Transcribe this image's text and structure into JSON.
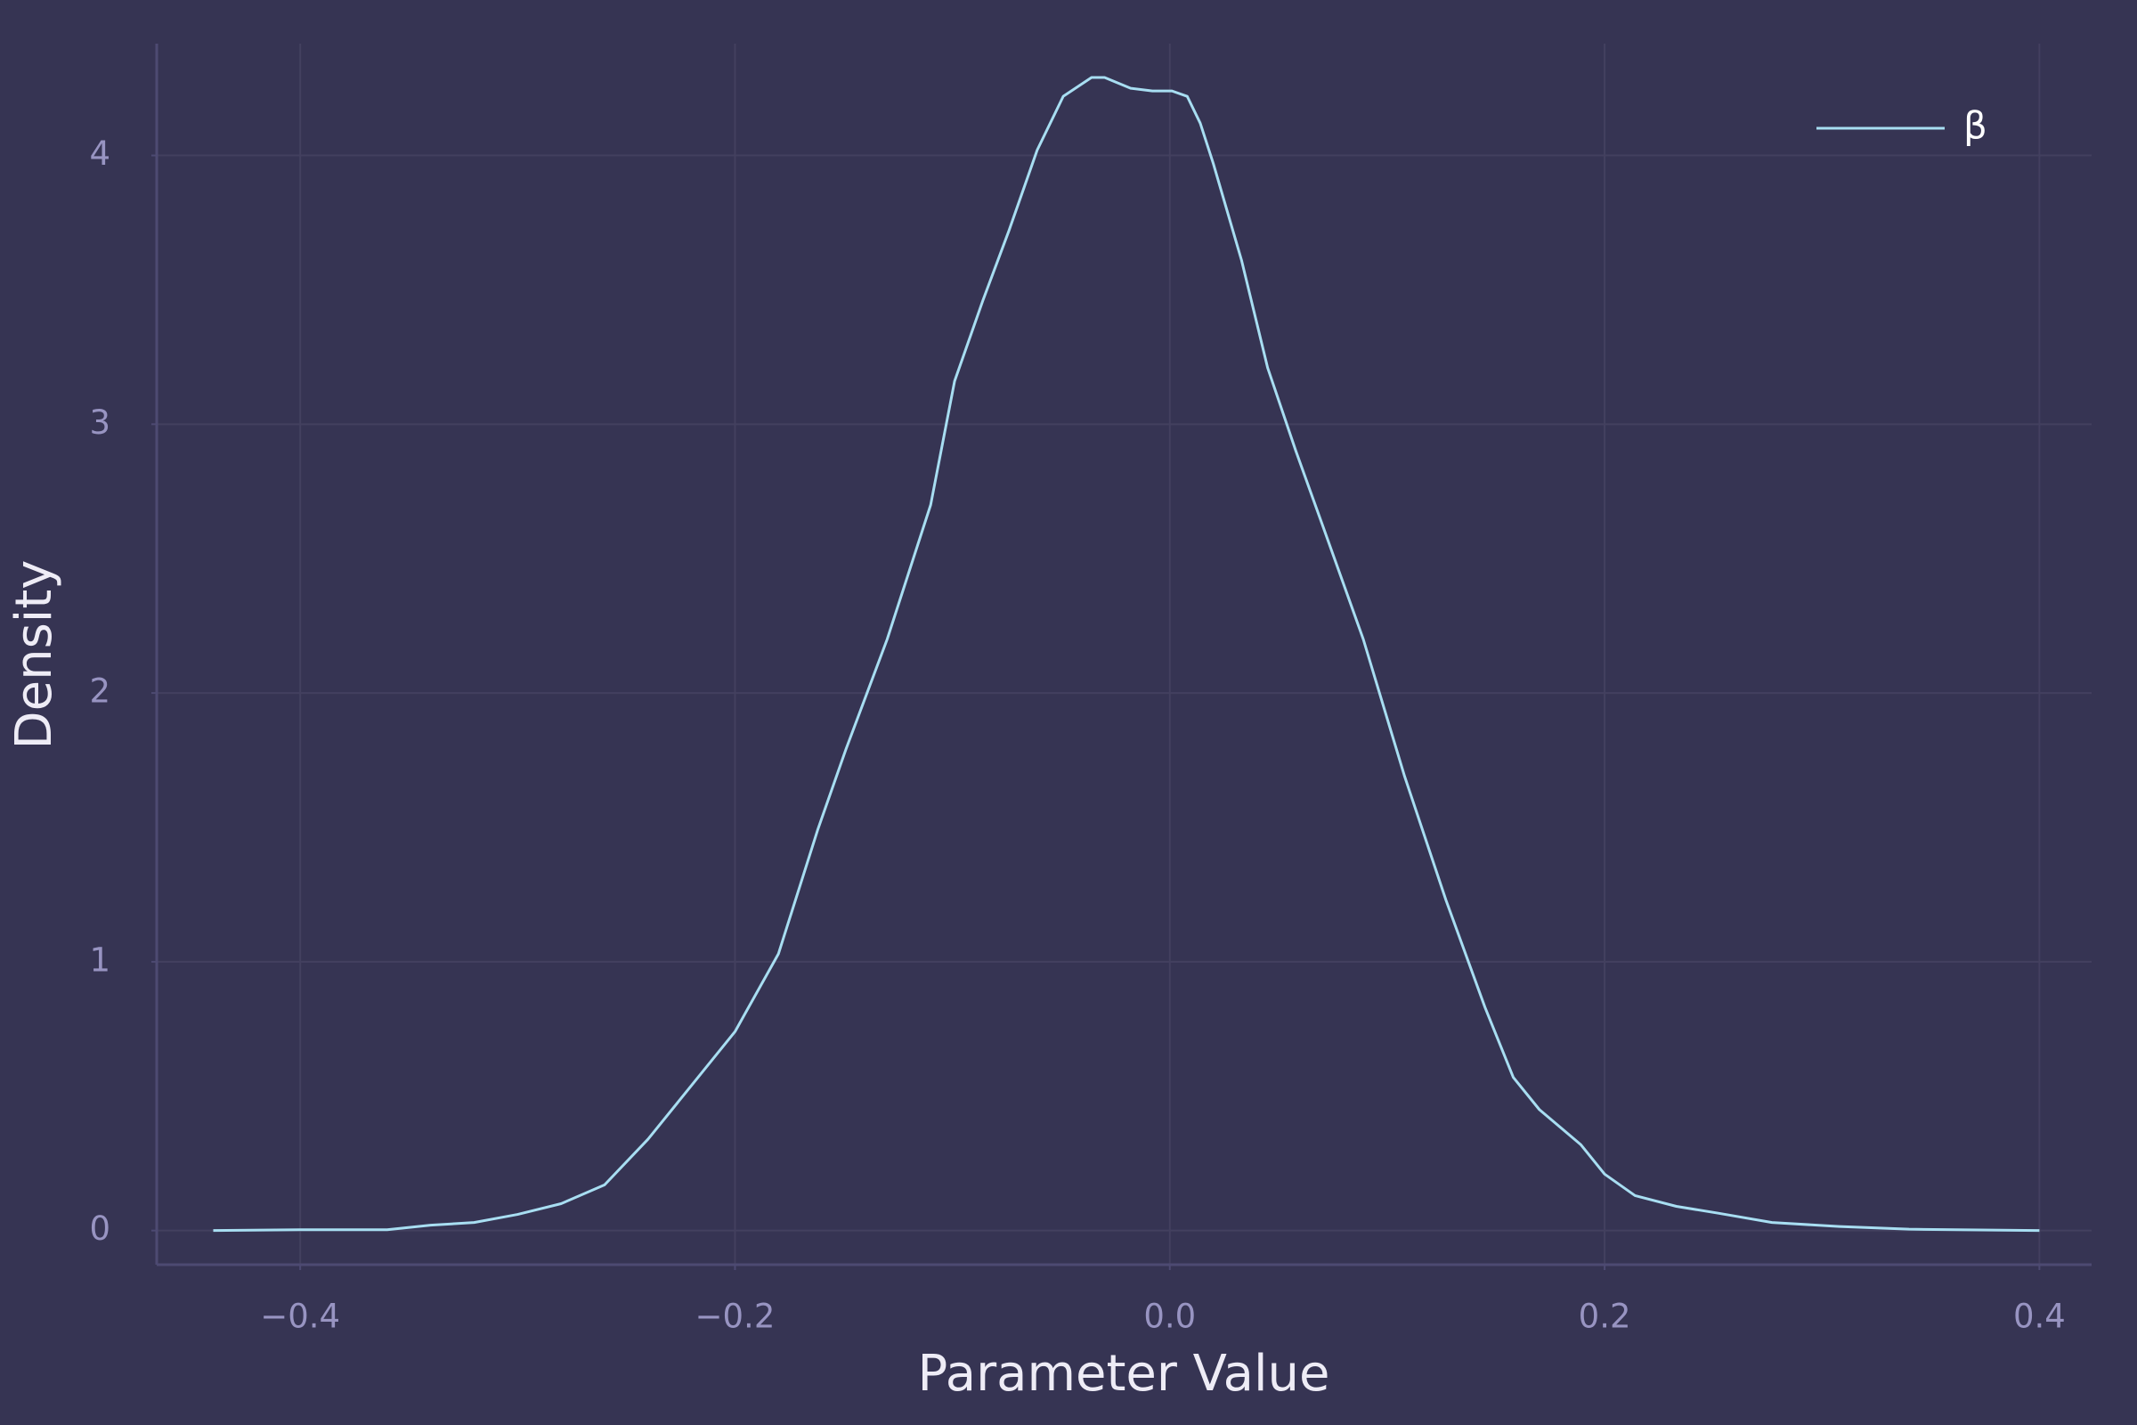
{
  "chart_data": {
    "type": "line",
    "xlabel": "Parameter Value",
    "ylabel": "Density",
    "x": [
      -0.44,
      -0.4,
      -0.36,
      -0.34,
      -0.32,
      -0.3,
      -0.28,
      -0.26,
      -0.24,
      -0.22,
      -0.2,
      -0.18,
      -0.162,
      -0.149,
      -0.13,
      -0.11,
      -0.099,
      -0.086,
      -0.074,
      -0.061,
      -0.049,
      -0.036,
      -0.03,
      -0.018,
      -0.008,
      0.001,
      0.008,
      0.014,
      0.02,
      0.033,
      0.045,
      0.058,
      0.07,
      0.089,
      0.108,
      0.127,
      0.145,
      0.158,
      0.17,
      0.189,
      0.2,
      0.214,
      0.233,
      0.252,
      0.277,
      0.308,
      0.34,
      0.4
    ],
    "series": [
      {
        "name": "β",
        "color": "#a8def2",
        "values": [
          0,
          0.003,
          0.003,
          0.02,
          0.03,
          0.06,
          0.1,
          0.17,
          0.34,
          0.54,
          0.74,
          1.03,
          1.49,
          1.79,
          2.2,
          2.7,
          3.16,
          3.46,
          3.72,
          4.02,
          4.22,
          4.29,
          4.29,
          4.25,
          4.24,
          4.24,
          4.22,
          4.12,
          3.97,
          3.61,
          3.21,
          2.9,
          2.63,
          2.2,
          1.69,
          1.23,
          0.83,
          0.57,
          0.45,
          0.32,
          0.21,
          0.13,
          0.09,
          0.065,
          0.03,
          0.015,
          0.005,
          0
        ]
      }
    ],
    "xlim": [
      -0.466,
      0.424
    ],
    "ylim": [
      -0.127,
      4.416
    ],
    "xticks": [
      {
        "value": -0.4,
        "label": "−0.4"
      },
      {
        "value": -0.2,
        "label": "−0.2"
      },
      {
        "value": 0,
        "label": "0.0"
      },
      0.2,
      0.4
    ],
    "yticks": [
      0,
      1,
      2,
      3,
      4
    ],
    "grid": true,
    "legend": "upper-right"
  }
}
